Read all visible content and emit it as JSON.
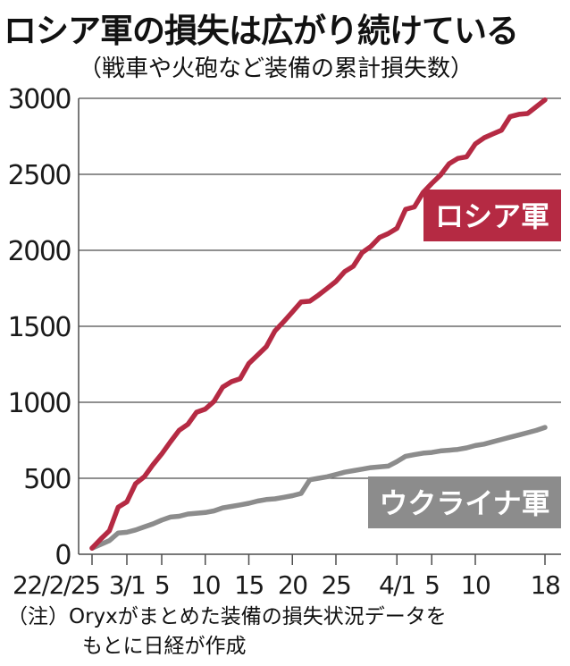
{
  "title": "ロシア軍の損失は広がり続けている",
  "subtitle": "（戦車や火砲など装備の累計損失数）",
  "note": {
    "line1": "（注）Oryxがまとめた装備の損失状況データを",
    "line2": "もとに日経が作成"
  },
  "colors": {
    "russia": "#b52a43",
    "ukraine": "#8c8c8c",
    "grid": "#4d4d4d",
    "text": "#1a1a1a"
  },
  "chart_data": {
    "type": "line",
    "title": "ロシア軍の損失は広がり続けている",
    "subtitle": "（戦車や火砲など装備の累計損失数）",
    "xlabel": "",
    "ylabel": "",
    "ylim": [
      0,
      3000
    ],
    "xlim": [
      "2022-02-25",
      "2022-04-18"
    ],
    "grid": true,
    "yticks": [
      0,
      500,
      1000,
      1500,
      2000,
      2500,
      3000
    ],
    "xticks": [
      {
        "date": "2022-02-25",
        "label": "22/2/25"
      },
      {
        "date": "2022-03-01",
        "label": "3/1"
      },
      {
        "date": "2022-03-05",
        "label": "5"
      },
      {
        "date": "2022-03-10",
        "label": "10"
      },
      {
        "date": "2022-03-15",
        "label": "15"
      },
      {
        "date": "2022-03-20",
        "label": "20"
      },
      {
        "date": "2022-03-25",
        "label": "25"
      },
      {
        "date": "2022-04-01",
        "label": "4/1"
      },
      {
        "date": "2022-04-05",
        "label": "5"
      },
      {
        "date": "2022-04-10",
        "label": "10"
      },
      {
        "date": "2022-04-18",
        "label": "18"
      }
    ],
    "series": [
      {
        "name": "ロシア軍",
        "color": "#b52a43",
        "points": [
          [
            "2022-02-25",
            40
          ],
          [
            "2022-02-26",
            100
          ],
          [
            "2022-02-27",
            155
          ],
          [
            "2022-02-28",
            310
          ],
          [
            "2022-03-01",
            345
          ],
          [
            "2022-03-02",
            465
          ],
          [
            "2022-03-03",
            510
          ],
          [
            "2022-03-04",
            590
          ],
          [
            "2022-03-05",
            660
          ],
          [
            "2022-03-06",
            740
          ],
          [
            "2022-03-07",
            815
          ],
          [
            "2022-03-08",
            855
          ],
          [
            "2022-03-09",
            935
          ],
          [
            "2022-03-10",
            955
          ],
          [
            "2022-03-11",
            1005
          ],
          [
            "2022-03-12",
            1100
          ],
          [
            "2022-03-13",
            1135
          ],
          [
            "2022-03-14",
            1155
          ],
          [
            "2022-03-15",
            1255
          ],
          [
            "2022-03-16",
            1310
          ],
          [
            "2022-03-17",
            1365
          ],
          [
            "2022-03-18",
            1470
          ],
          [
            "2022-03-19",
            1530
          ],
          [
            "2022-03-20",
            1595
          ],
          [
            "2022-03-21",
            1660
          ],
          [
            "2022-03-22",
            1665
          ],
          [
            "2022-03-23",
            1705
          ],
          [
            "2022-03-24",
            1750
          ],
          [
            "2022-03-25",
            1795
          ],
          [
            "2022-03-26",
            1860
          ],
          [
            "2022-03-27",
            1895
          ],
          [
            "2022-03-28",
            1985
          ],
          [
            "2022-03-29",
            2025
          ],
          [
            "2022-03-30",
            2085
          ],
          [
            "2022-03-31",
            2110
          ],
          [
            "2022-04-01",
            2145
          ],
          [
            "2022-04-02",
            2270
          ],
          [
            "2022-04-03",
            2285
          ],
          [
            "2022-04-04",
            2380
          ],
          [
            "2022-04-05",
            2440
          ],
          [
            "2022-04-06",
            2495
          ],
          [
            "2022-04-07",
            2570
          ],
          [
            "2022-04-08",
            2605
          ],
          [
            "2022-04-09",
            2615
          ],
          [
            "2022-04-10",
            2700
          ],
          [
            "2022-04-11",
            2740
          ],
          [
            "2022-04-12",
            2765
          ],
          [
            "2022-04-13",
            2790
          ],
          [
            "2022-04-14",
            2880
          ],
          [
            "2022-04-15",
            2895
          ],
          [
            "2022-04-16",
            2900
          ],
          [
            "2022-04-17",
            2945
          ],
          [
            "2022-04-18",
            2990
          ]
        ]
      },
      {
        "name": "ウクライナ軍",
        "color": "#8c8c8c",
        "points": [
          [
            "2022-02-25",
            40
          ],
          [
            "2022-02-26",
            65
          ],
          [
            "2022-02-27",
            90
          ],
          [
            "2022-02-28",
            140
          ],
          [
            "2022-03-01",
            145
          ],
          [
            "2022-03-02",
            160
          ],
          [
            "2022-03-03",
            180
          ],
          [
            "2022-03-04",
            200
          ],
          [
            "2022-03-05",
            225
          ],
          [
            "2022-03-06",
            245
          ],
          [
            "2022-03-07",
            250
          ],
          [
            "2022-03-08",
            265
          ],
          [
            "2022-03-09",
            270
          ],
          [
            "2022-03-10",
            275
          ],
          [
            "2022-03-11",
            285
          ],
          [
            "2022-03-12",
            305
          ],
          [
            "2022-03-13",
            315
          ],
          [
            "2022-03-14",
            325
          ],
          [
            "2022-03-15",
            335
          ],
          [
            "2022-03-16",
            350
          ],
          [
            "2022-03-17",
            360
          ],
          [
            "2022-03-18",
            365
          ],
          [
            "2022-03-19",
            375
          ],
          [
            "2022-03-20",
            385
          ],
          [
            "2022-03-21",
            400
          ],
          [
            "2022-03-22",
            490
          ],
          [
            "2022-03-23",
            500
          ],
          [
            "2022-03-24",
            510
          ],
          [
            "2022-03-25",
            525
          ],
          [
            "2022-03-26",
            540
          ],
          [
            "2022-03-27",
            550
          ],
          [
            "2022-03-28",
            560
          ],
          [
            "2022-03-29",
            570
          ],
          [
            "2022-03-30",
            575
          ],
          [
            "2022-03-31",
            580
          ],
          [
            "2022-04-01",
            610
          ],
          [
            "2022-04-02",
            645
          ],
          [
            "2022-04-03",
            655
          ],
          [
            "2022-04-04",
            665
          ],
          [
            "2022-04-05",
            670
          ],
          [
            "2022-04-06",
            680
          ],
          [
            "2022-04-07",
            685
          ],
          [
            "2022-04-08",
            690
          ],
          [
            "2022-04-09",
            700
          ],
          [
            "2022-04-10",
            715
          ],
          [
            "2022-04-11",
            725
          ],
          [
            "2022-04-12",
            740
          ],
          [
            "2022-04-13",
            755
          ],
          [
            "2022-04-14",
            770
          ],
          [
            "2022-04-15",
            785
          ],
          [
            "2022-04-16",
            800
          ],
          [
            "2022-04-17",
            815
          ],
          [
            "2022-04-18",
            835
          ]
        ]
      }
    ]
  }
}
